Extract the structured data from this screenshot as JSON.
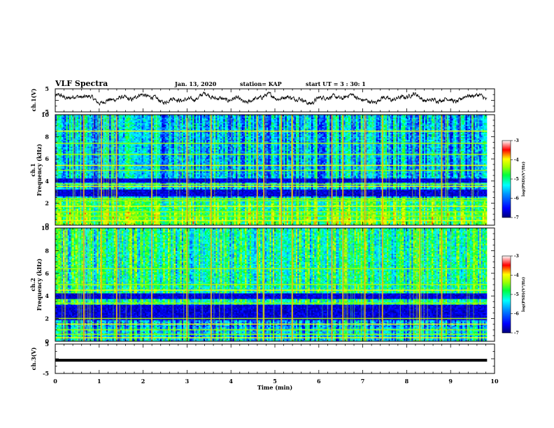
{
  "header": {
    "title": "VLF Spectra",
    "date": "Jan. 13, 2020",
    "station": "station= KAP",
    "start": "start UT =  3 : 30: 1"
  },
  "colors": {
    "scale": [
      "#00007a",
      "#0000ff",
      "#0090ff",
      "#00ffff",
      "#00ff40",
      "#a0ff00",
      "#ffff00",
      "#ff0000",
      "#ffffff"
    ],
    "axis": "#000000",
    "trace": "#000000"
  },
  "chart_data": [
    {
      "type": "line",
      "name": "ch1-waveform",
      "ylabel": "ch.1(V)",
      "ylim": [
        -5,
        5
      ],
      "yticks": [
        "5",
        "-5"
      ],
      "xlim": [
        0,
        10
      ],
      "data_extent_min": [
        0,
        9.83
      ],
      "description": "noisy oscillating voltage trace, amplitude mostly between -1 and 3 V"
    },
    {
      "type": "heatmap",
      "name": "ch1-spectrogram",
      "ylabel_line1": "ch.1",
      "ylabel_line2": "Frequency (kHz)",
      "ylim": [
        0,
        10
      ],
      "yticks": [
        "0",
        "2",
        "4",
        "6",
        "8",
        "10"
      ],
      "xlim": [
        0,
        10
      ],
      "data_extent_min": [
        0,
        9.83
      ],
      "colorbar": {
        "label": "log(PSD)(V²/Hz)",
        "range": [
          -7,
          -3
        ],
        "ticks": [
          "-3",
          "-4",
          "-5",
          "-6",
          "-7"
        ]
      },
      "dark_bands_khz": [
        [
          2.6,
          3.3
        ],
        [
          3.85,
          4.3
        ]
      ],
      "bright_lines_khz": [
        0.4,
        0.8,
        1.2,
        1.7,
        2.2,
        2.4,
        3.5,
        3.7,
        4.95,
        5.4,
        6.4,
        7.4,
        8.5
      ],
      "vertical_sferics_min": [
        0.65,
        1.05,
        1.4,
        2.2,
        3.0,
        3.55,
        4.6,
        4.75,
        5.15,
        5.4,
        6.3,
        6.55,
        7.05,
        7.45,
        8.3,
        8.8
      ]
    },
    {
      "type": "heatmap",
      "name": "ch2-spectrogram",
      "ylabel_line1": "ch.2",
      "ylabel_line2": "Frequency (kHz)",
      "ylim": [
        0,
        10
      ],
      "yticks": [
        "0",
        "2",
        "4",
        "6",
        "8",
        "10"
      ],
      "xlim": [
        0,
        10
      ],
      "data_extent_min": [
        0,
        9.83
      ],
      "colorbar": {
        "label": "log(PSD)(V²/Hz)",
        "range": [
          -7,
          -3
        ],
        "ticks": [
          "-3",
          "-4",
          "-5",
          "-6",
          "-7"
        ]
      },
      "dark_bands_khz": [
        [
          1.9,
          3.2
        ],
        [
          3.7,
          4.2
        ]
      ],
      "bright_lines_khz": [
        0.3,
        0.6,
        1.0,
        1.5,
        2.0,
        3.35,
        4.5,
        5.0,
        6.4
      ],
      "vertical_sferics_min": [
        0.65,
        1.05,
        1.4,
        2.2,
        3.0,
        3.55,
        4.6,
        4.75,
        5.15,
        5.4,
        6.3,
        6.55,
        7.05,
        7.45,
        8.3,
        8.8
      ]
    },
    {
      "type": "line",
      "name": "ch3-waveform",
      "ylabel": "ch.3(V)",
      "ylim": [
        -5,
        5
      ],
      "yticks": [
        "5",
        "-5"
      ],
      "xlim": [
        0,
        10
      ],
      "values_const": -0.5,
      "data_extent_min": [
        0,
        9.83
      ]
    }
  ],
  "xaxis": {
    "label": "Time (min)",
    "ticks": [
      "0",
      "1",
      "2",
      "3",
      "4",
      "5",
      "6",
      "7",
      "8",
      "9",
      "10"
    ]
  }
}
